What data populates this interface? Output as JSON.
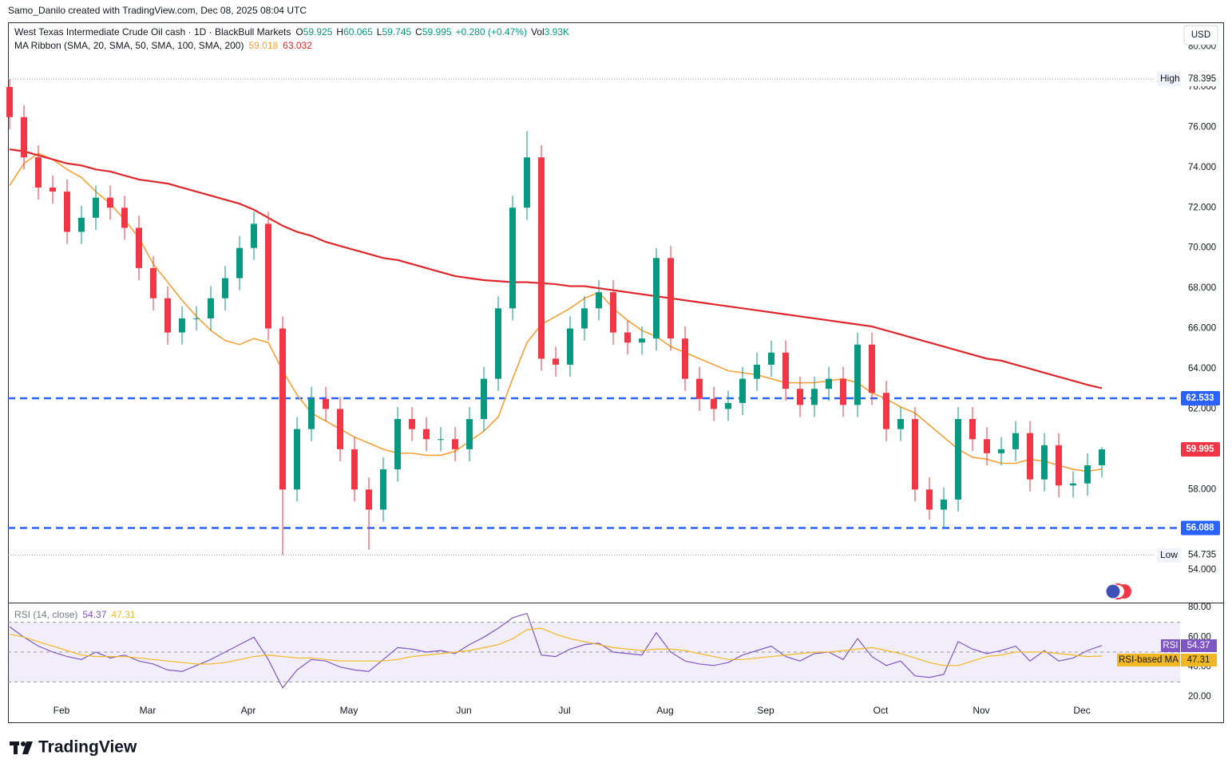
{
  "header": {
    "attribution": "Samo_Danilo created with TradingView.com, Dec 08, 2025 08:04 UTC",
    "brand": "TradingView"
  },
  "chart_data": [
    {
      "type": "candlestick",
      "title": "West Texas Intermediate Crude Oil cash · 1D · BlackBull Markets",
      "quote": [
        {
          "key": "O",
          "text": "59.925"
        },
        {
          "key": "H",
          "text": "60.065"
        },
        {
          "key": "L",
          "text": "59.745"
        },
        {
          "key": "C",
          "text": "59.995"
        },
        {
          "text": "+0.280 (+0.47%)"
        },
        {
          "key": "Vol",
          "text": "3.93K"
        }
      ],
      "indicator": "MA Ribbon (SMA, 20, SMA, 50, SMA, 100, SMA, 200)",
      "currency": "USD",
      "up_color": "#089981",
      "down_color": "#f23645",
      "open": [
        78.0,
        76.5,
        74.5,
        73,
        72.8,
        70.8,
        71.5,
        72.5,
        72,
        71,
        69,
        67.5,
        65.8,
        66.5,
        66.5,
        67.5,
        68.5,
        70,
        71.2,
        66,
        58,
        61,
        62.5,
        62,
        60,
        58,
        57,
        59,
        61.5,
        61,
        60.5,
        60.5,
        60,
        61.5,
        63.5,
        67,
        72,
        74.5,
        64.5,
        64.2,
        66,
        67,
        67.8,
        65.8,
        65.3,
        65.5,
        69.5,
        65.5,
        63.5,
        62.5,
        62,
        62.3,
        63.5,
        64.2,
        64.8,
        63,
        62.2,
        63,
        63.5,
        62.2,
        65.2,
        62.8,
        61,
        61.5,
        58,
        57,
        57.5,
        61.5,
        60.5,
        59.8,
        60,
        60.8,
        58.5,
        60.2,
        58.2,
        58.3,
        59.2
      ],
      "high": [
        78.395,
        77.1,
        75.1,
        73.6,
        73.4,
        72.1,
        73.1,
        73.1,
        72.6,
        71.6,
        69.6,
        68.1,
        67.1,
        67.1,
        68.1,
        69.1,
        70.6,
        71.8,
        71.8,
        66.6,
        61.6,
        63.1,
        63.1,
        62.6,
        60.6,
        58.6,
        59.6,
        62.1,
        62.1,
        61.6,
        61.1,
        61.1,
        62.1,
        64.1,
        67.6,
        72.6,
        75.8,
        75.1,
        65.1,
        66.6,
        67.6,
        68.4,
        68.4,
        66.4,
        66.1,
        70.0,
        70.1,
        66.1,
        64.1,
        63.1,
        62.9,
        64.1,
        64.8,
        65.4,
        65.4,
        63.6,
        63.6,
        64.1,
        64.1,
        65.8,
        65.8,
        63.4,
        62.1,
        62.1,
        58.6,
        58.1,
        62.1,
        62.1,
        61.1,
        60.6,
        61.4,
        61.4,
        60.8,
        60.8,
        58.9,
        59.8,
        60.1
      ],
      "low": [
        75.9,
        73.9,
        72.4,
        72.2,
        70.2,
        70.2,
        70.9,
        71.4,
        70.4,
        68.4,
        66.9,
        65.2,
        65.2,
        65.9,
        65.9,
        66.9,
        67.9,
        69.4,
        65.4,
        54.735,
        57.4,
        60.4,
        61.4,
        59.4,
        57.4,
        55.0,
        56.4,
        58.4,
        60.4,
        59.9,
        59.9,
        59.4,
        59.4,
        60.9,
        62.9,
        66.4,
        71.4,
        63.9,
        63.6,
        63.6,
        65.4,
        66.4,
        65.2,
        64.7,
        64.7,
        64.9,
        64.9,
        62.9,
        61.9,
        61.4,
        61.4,
        61.7,
        62.9,
        63.6,
        62.4,
        61.6,
        61.6,
        62.4,
        61.6,
        61.6,
        62.2,
        60.4,
        60.4,
        57.4,
        56.5,
        56.1,
        56.9,
        59.9,
        59.2,
        59.2,
        59.4,
        57.9,
        57.9,
        57.6,
        57.6,
        57.7,
        58.6
      ],
      "close": [
        76.5,
        74.5,
        73,
        72.8,
        70.8,
        71.5,
        72.5,
        72,
        71,
        69,
        67.5,
        65.8,
        66.5,
        66.5,
        67.5,
        68.5,
        70,
        71.2,
        66,
        58,
        61,
        62.5,
        62,
        60,
        58,
        57,
        59,
        61.5,
        61,
        60.5,
        60.5,
        60,
        61.5,
        63.5,
        67,
        72,
        74.5,
        64.5,
        64.2,
        66,
        67,
        67.8,
        65.8,
        65.3,
        65.5,
        69.5,
        65.5,
        63.5,
        62.5,
        62,
        62.3,
        63.5,
        64.2,
        64.8,
        63,
        62.2,
        63,
        63.5,
        62.2,
        65.2,
        62.8,
        61,
        61.5,
        58,
        57,
        57.5,
        61.5,
        60.5,
        59.8,
        60,
        60.8,
        58.5,
        60.2,
        58.2,
        58.3,
        59.2,
        59.995
      ],
      "series": [
        {
          "color": "#f7a035",
          "values": [
            73.1,
            74.2,
            74.7,
            74.4,
            73.9,
            73.5,
            72.8,
            72.2,
            71.4,
            70.5,
            69.2,
            68.3,
            67.4,
            66.6,
            65.9,
            65.4,
            65.2,
            65.5,
            65.3,
            63.9,
            62.7,
            61.8,
            61.4,
            61.0,
            60.6,
            60.3,
            60.0,
            59.8,
            59.8,
            59.7,
            59.7,
            59.9,
            60.4,
            60.9,
            61.6,
            63.5,
            65.3,
            66.2,
            66.6,
            67.0,
            67.5,
            67.8,
            67.0,
            66.4,
            65.9,
            65.6,
            65.1,
            64.8,
            64.5,
            64.2,
            63.9,
            63.8,
            63.7,
            63.5,
            63.3,
            63.3,
            63.3,
            63.4,
            63.5,
            63.3,
            62.8,
            62.5,
            62.1,
            61.8,
            61.2,
            60.6,
            60.0,
            59.6,
            59.5,
            59.3,
            59.3,
            59.5,
            59.4,
            59.2,
            59.0,
            58.9,
            59.018
          ]
        },
        {
          "color": "#e0262a",
          "values": [
            74.9,
            74.8,
            74.6,
            74.4,
            74.2,
            74.1,
            73.9,
            73.8,
            73.6,
            73.4,
            73.3,
            73.2,
            73.0,
            72.8,
            72.6,
            72.4,
            72.2,
            71.9,
            71.5,
            71.1,
            70.8,
            70.6,
            70.3,
            70.1,
            69.9,
            69.7,
            69.5,
            69.4,
            69.2,
            69.0,
            68.8,
            68.6,
            68.5,
            68.4,
            68.35,
            68.3,
            68.3,
            68.25,
            68.2,
            68.1,
            68.1,
            68.0,
            67.9,
            67.8,
            67.7,
            67.6,
            67.5,
            67.4,
            67.3,
            67.2,
            67.1,
            67.0,
            66.9,
            66.8,
            66.7,
            66.6,
            66.5,
            66.4,
            66.3,
            66.2,
            66.1,
            65.9,
            65.7,
            65.5,
            65.3,
            65.1,
            64.9,
            64.7,
            64.5,
            64.4,
            64.2,
            64.0,
            63.8,
            63.6,
            63.4,
            63.2,
            63.032
          ]
        }
      ],
      "levels": [
        {
          "value": 62.533,
          "color": "#2962ff"
        },
        {
          "value": 56.088,
          "color": "#2962ff"
        }
      ],
      "high_label": "High",
      "low_label": "Low",
      "last_price_color": "#f23645",
      "ylim": [
        52.38,
        81.13
      ],
      "yticks": [
        {
          "value": 54,
          "label": "54.000"
        },
        {
          "value": 56,
          "label": "56.000"
        },
        {
          "value": 58,
          "label": "58.000"
        },
        {
          "value": 60,
          "label": "60.000"
        },
        {
          "value": 62,
          "label": "62.000"
        },
        {
          "value": 64,
          "label": "64.000"
        },
        {
          "value": 66,
          "label": "66.000"
        },
        {
          "value": 68,
          "label": "68.000"
        },
        {
          "value": 70,
          "label": "70.000"
        },
        {
          "value": 72,
          "label": "72.000"
        },
        {
          "value": 74,
          "label": "74.000"
        },
        {
          "value": 76,
          "label": "76.000"
        },
        {
          "value": 78,
          "label": "78.000"
        },
        {
          "value": 80,
          "label": "80.000"
        }
      ],
      "grid": false
    },
    {
      "type": "line",
      "title": "RSI (14, close)",
      "categories": [
        null,
        null,
        null,
        null,
        "Feb",
        null,
        null,
        null,
        null,
        null,
        "Mar",
        null,
        null,
        null,
        null,
        null,
        null,
        "Apr",
        null,
        null,
        null,
        null,
        null,
        null,
        "May",
        null,
        null,
        null,
        null,
        null,
        null,
        null,
        "Jun",
        null,
        null,
        null,
        null,
        null,
        null,
        "Jul",
        null,
        null,
        null,
        null,
        null,
        null,
        "Aug",
        null,
        null,
        null,
        null,
        null,
        null,
        "Sep",
        null,
        null,
        null,
        null,
        null,
        null,
        null,
        "Oct",
        null,
        null,
        null,
        null,
        null,
        null,
        "Nov",
        null,
        null,
        null,
        null,
        null,
        null,
        "Dec",
        null
      ],
      "series": [
        {
          "name": "RSI",
          "color": "#7e57c2",
          "values": [
            67,
            60,
            54,
            50,
            47,
            45,
            50,
            46,
            48,
            44,
            42,
            38,
            37,
            41,
            45,
            50,
            55,
            60,
            45,
            26,
            38,
            45,
            44,
            40,
            38,
            37,
            45,
            53,
            52,
            50,
            51,
            49,
            55,
            60,
            66,
            73,
            76,
            48,
            47,
            52,
            55,
            56,
            50,
            49,
            48,
            63,
            50,
            44,
            42,
            41,
            43,
            48,
            51,
            54,
            47,
            44,
            49,
            50,
            45,
            59,
            47,
            41,
            44,
            34,
            33,
            35,
            57,
            52,
            49,
            51,
            54,
            44,
            51,
            44,
            46,
            51,
            54.37
          ]
        },
        {
          "name": "RSI-based MA",
          "color": "#f2b823",
          "values": [
            62,
            60,
            57,
            54,
            51,
            48,
            47,
            47,
            47,
            46,
            45,
            44,
            43,
            42,
            42,
            43,
            45,
            47,
            48,
            47,
            46,
            46,
            45,
            44,
            44,
            44,
            44,
            45,
            47,
            48,
            49,
            50,
            51,
            53,
            55,
            59,
            65,
            66,
            62,
            59,
            57,
            55,
            53,
            52,
            51,
            52,
            52,
            51,
            49,
            47,
            45,
            45,
            46,
            47,
            48,
            49,
            50,
            50,
            51,
            52,
            53,
            51,
            49,
            46,
            43,
            41,
            41,
            44,
            47,
            48,
            50,
            50,
            50,
            49,
            48,
            47,
            47.31
          ]
        }
      ],
      "band": [
        30,
        70
      ],
      "midline": 50,
      "ylim": [
        16.25,
        83.2
      ],
      "yticks": [
        {
          "value": 20,
          "label": "20.00"
        },
        {
          "value": 40,
          "label": "40.00"
        },
        {
          "value": 60,
          "label": "60.00"
        },
        {
          "value": 80,
          "label": "80.00"
        }
      ]
    }
  ]
}
